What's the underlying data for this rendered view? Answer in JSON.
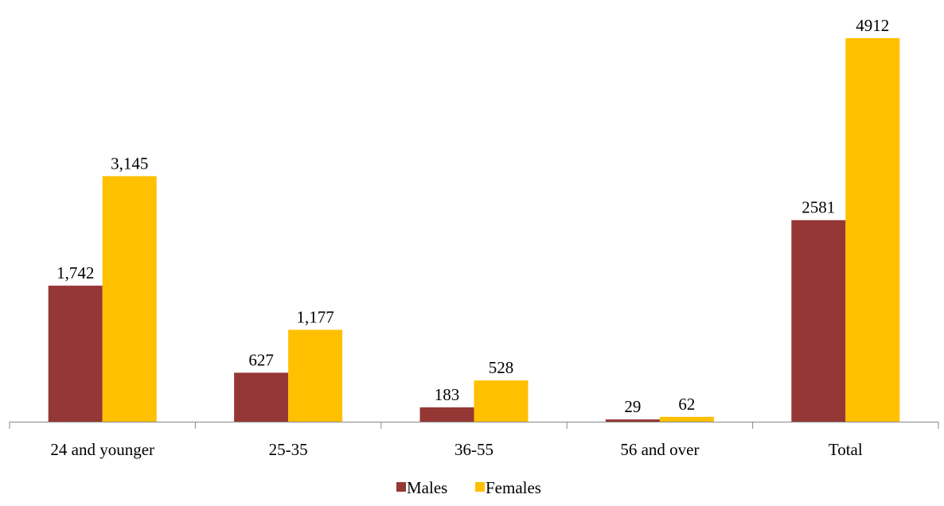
{
  "chart_data": {
    "type": "bar",
    "categories": [
      "24 and younger",
      "25-35",
      "36-55",
      "56 and over",
      "Total"
    ],
    "series": [
      {
        "name": "Males",
        "values": [
          1742,
          627,
          183,
          29,
          2581
        ],
        "labels": [
          "1,742",
          "627",
          "183",
          "29",
          "2581"
        ],
        "color": "#953735"
      },
      {
        "name": "Females",
        "values": [
          3145,
          1177,
          528,
          62,
          4912
        ],
        "labels": [
          "3,145",
          "1,177",
          "528",
          "62",
          "4912"
        ],
        "color": "#FFC000"
      }
    ],
    "title": "",
    "xlabel": "",
    "ylabel": "",
    "ylim": [
      0,
      5000
    ],
    "grid": false,
    "legend": "bottom"
  }
}
